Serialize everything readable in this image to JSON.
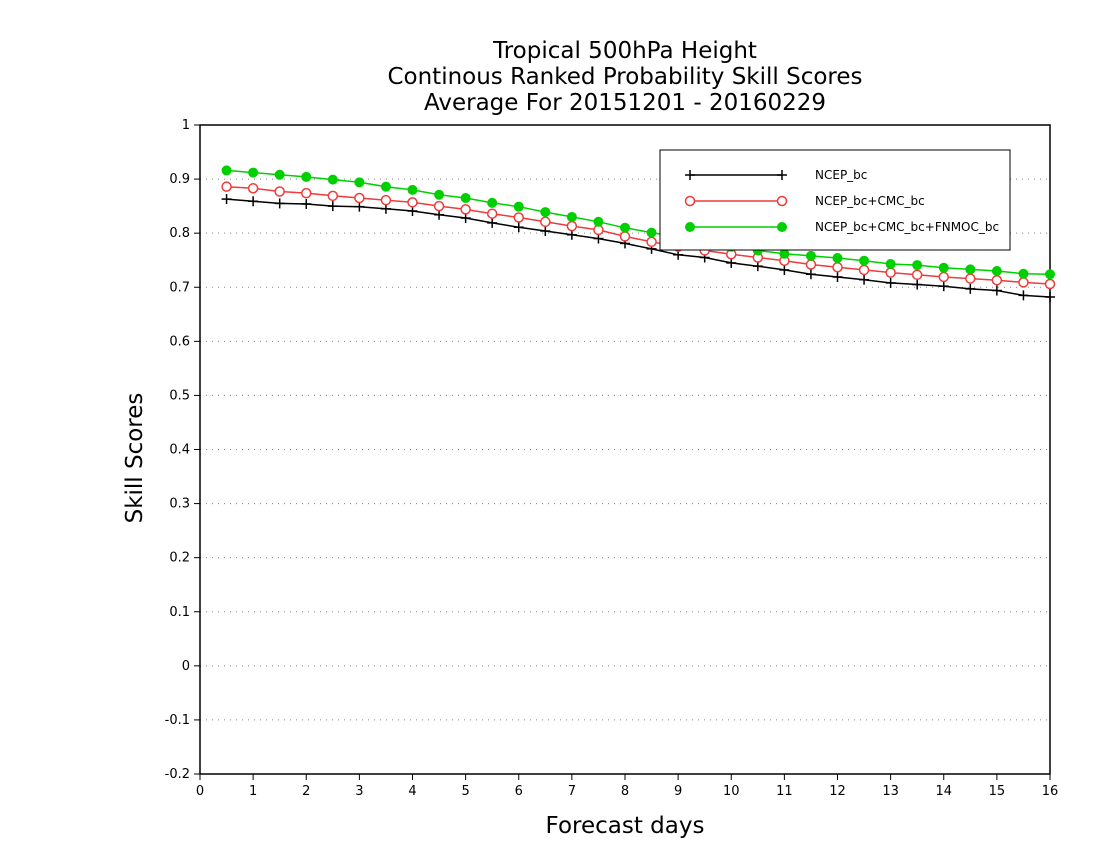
{
  "chart_data": {
    "type": "line",
    "title_lines": [
      "Tropical 500hPa Height",
      "Continous Ranked Probability Skill Scores",
      "Average For 20151201 - 20160229"
    ],
    "xlabel": "Forecast days",
    "ylabel": "Skill Scores",
    "xlim": [
      0,
      16
    ],
    "ylim": [
      -0.2,
      1
    ],
    "x_ticks": [
      "0",
      "1",
      "2",
      "3",
      "4",
      "5",
      "6",
      "7",
      "8",
      "9",
      "10",
      "11",
      "12",
      "13",
      "14",
      "15",
      "16"
    ],
    "y_ticks": [
      "-0.2",
      "-0.1",
      "0",
      "0.1",
      "0.2",
      "0.3",
      "0.4",
      "0.5",
      "0.6",
      "0.7",
      "0.8",
      "0.9",
      "1"
    ],
    "grid": "horizontal dotted",
    "legend_position": "top-right",
    "x": [
      0.5,
      1,
      1.5,
      2,
      2.5,
      3,
      3.5,
      4,
      4.5,
      5,
      5.5,
      6,
      6.5,
      7,
      7.5,
      8,
      8.5,
      9,
      9.5,
      10,
      10.5,
      11,
      11.5,
      12,
      12.5,
      13,
      13.5,
      14,
      14.5,
      15,
      15.5,
      16
    ],
    "series": [
      {
        "name": "NCEP_bc",
        "color": "#000000",
        "marker": "plus",
        "values": [
          0.863,
          0.859,
          0.855,
          0.854,
          0.85,
          0.849,
          0.845,
          0.841,
          0.834,
          0.828,
          0.819,
          0.811,
          0.804,
          0.797,
          0.79,
          0.781,
          0.771,
          0.76,
          0.755,
          0.745,
          0.739,
          0.732,
          0.724,
          0.719,
          0.714,
          0.708,
          0.705,
          0.702,
          0.697,
          0.694,
          0.685,
          0.682
        ]
      },
      {
        "name": "NCEP_bc+CMC_bc",
        "color": "#ef3b3b",
        "marker": "open-circle",
        "values": [
          0.886,
          0.883,
          0.877,
          0.874,
          0.869,
          0.865,
          0.861,
          0.857,
          0.85,
          0.844,
          0.836,
          0.829,
          0.821,
          0.813,
          0.806,
          0.794,
          0.784,
          0.775,
          0.768,
          0.761,
          0.755,
          0.749,
          0.742,
          0.737,
          0.732,
          0.727,
          0.723,
          0.719,
          0.716,
          0.713,
          0.709,
          0.706
        ]
      },
      {
        "name": "NCEP_bc+CMC_bc+FNMOC_bc",
        "color": "#00d000",
        "marker": "filled-circle",
        "values": [
          0.916,
          0.912,
          0.908,
          0.904,
          0.899,
          0.894,
          0.886,
          0.88,
          0.871,
          0.865,
          0.856,
          0.849,
          0.839,
          0.83,
          0.821,
          0.81,
          0.801,
          0.793,
          0.784,
          0.775,
          0.768,
          0.762,
          0.758,
          0.754,
          0.749,
          0.743,
          0.741,
          0.736,
          0.733,
          0.73,
          0.725,
          0.724
        ]
      }
    ]
  }
}
